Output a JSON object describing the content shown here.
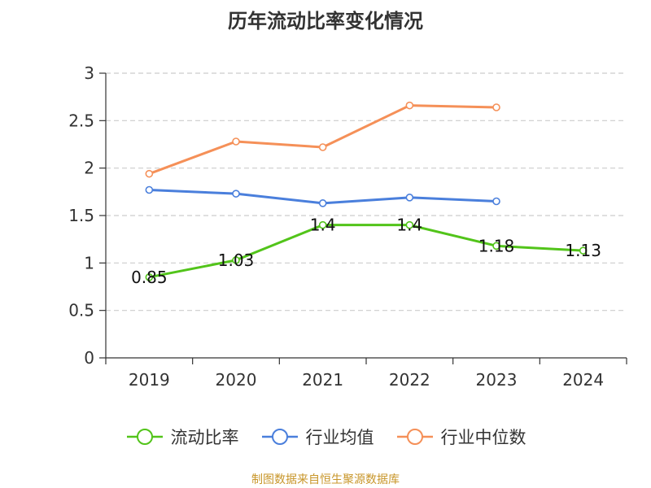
{
  "title": "历年流动比率变化情况",
  "source": "制图数据来自恒生聚源数据库",
  "colors": {
    "axis": "#333333",
    "grid": "#cccccc"
  },
  "chart_data": {
    "type": "line",
    "title": "历年流动比率变化情况",
    "xlabel": "",
    "ylabel": "",
    "categories": [
      "2019",
      "2020",
      "2021",
      "2022",
      "2023",
      "2024"
    ],
    "ylim": [
      0,
      3
    ],
    "yticks": [
      "0",
      "0.5",
      "1",
      "1.5",
      "2",
      "2.5",
      "3"
    ],
    "grid": true,
    "legend_position": "bottom",
    "series": [
      {
        "name": "流动比率",
        "color": "#52c41a",
        "values": [
          0.85,
          1.03,
          1.4,
          1.4,
          1.18,
          1.13
        ],
        "labels": [
          "0.85",
          "1.03",
          "1.4",
          "1.4",
          "1.18",
          "1.13"
        ]
      },
      {
        "name": "行业均值",
        "color": "#4a7fdc",
        "values": [
          1.77,
          1.73,
          1.63,
          1.69,
          1.65,
          null
        ]
      },
      {
        "name": "行业中位数",
        "color": "#f59058",
        "values": [
          1.94,
          2.28,
          2.22,
          2.66,
          2.64,
          null
        ]
      }
    ]
  }
}
